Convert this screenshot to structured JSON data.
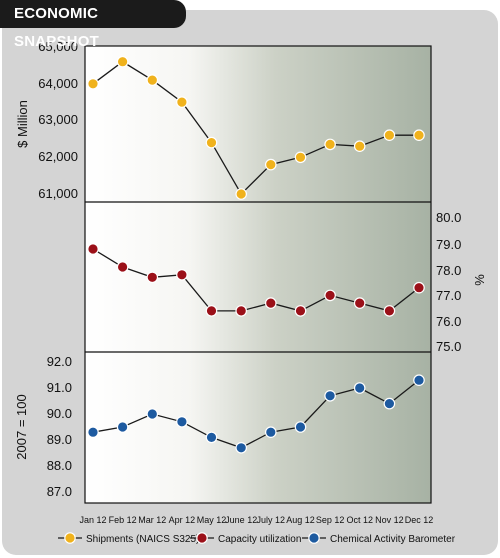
{
  "title": "ECONOMIC SNAPSHOT",
  "chart_data": {
    "type": "line",
    "x": [
      "Jan 12",
      "Feb 12",
      "Mar 12",
      "Apr 12",
      "May 12",
      "June 12",
      "July 12",
      "Aug 12",
      "Sep 12",
      "Oct 12",
      "Nov 12",
      "Dec 12"
    ],
    "panels": [
      {
        "series_name": "Shipments (NAICS S325)",
        "color": "#f0b21c",
        "ylabel": "$ Million",
        "yaxis_side": "left",
        "ylim": [
          60800,
          65000
        ],
        "yticks": [
          "65,000",
          "64,000",
          "63,000",
          "62,000",
          "61,000"
        ],
        "ytick_values": [
          65000,
          64000,
          63000,
          62000,
          61000
        ],
        "values": [
          64000,
          64600,
          64100,
          63500,
          62400,
          61000,
          61800,
          62000,
          62350,
          62300,
          62600,
          62600
        ]
      },
      {
        "series_name": "Capacity utilization",
        "color": "#9b1018",
        "ylabel": "%",
        "yaxis_side": "right",
        "ylim": [
          75.0,
          80.5
        ],
        "yticks": [
          "80.0",
          "79.0",
          "78.0",
          "77.0",
          "76.0",
          "75.0"
        ],
        "ytick_values": [
          80,
          79,
          78,
          77,
          76,
          75
        ],
        "values": [
          78.8,
          78.1,
          77.7,
          77.8,
          76.4,
          76.4,
          76.7,
          76.4,
          77.0,
          76.7,
          76.4,
          77.3
        ]
      },
      {
        "series_name": "Chemical Activity Barometer",
        "color": "#1d5aa0",
        "ylabel": "2007 = 100",
        "yaxis_side": "left",
        "ylim": [
          86.5,
          92.3
        ],
        "yticks": [
          "92.0",
          "91.0",
          "90.0",
          "89.0",
          "88.0",
          "87.0"
        ],
        "ytick_values": [
          92,
          91,
          90,
          89,
          88,
          87
        ],
        "values": [
          89.3,
          89.5,
          90.0,
          89.7,
          89.1,
          88.7,
          89.3,
          89.5,
          90.7,
          91.0,
          90.4,
          91.3
        ]
      }
    ],
    "legend": {
      "placement": "bottom",
      "entries": [
        "Shipments (NAICS S325)",
        "Capacity utilization",
        "Chemical Activity Barometer"
      ]
    }
  }
}
